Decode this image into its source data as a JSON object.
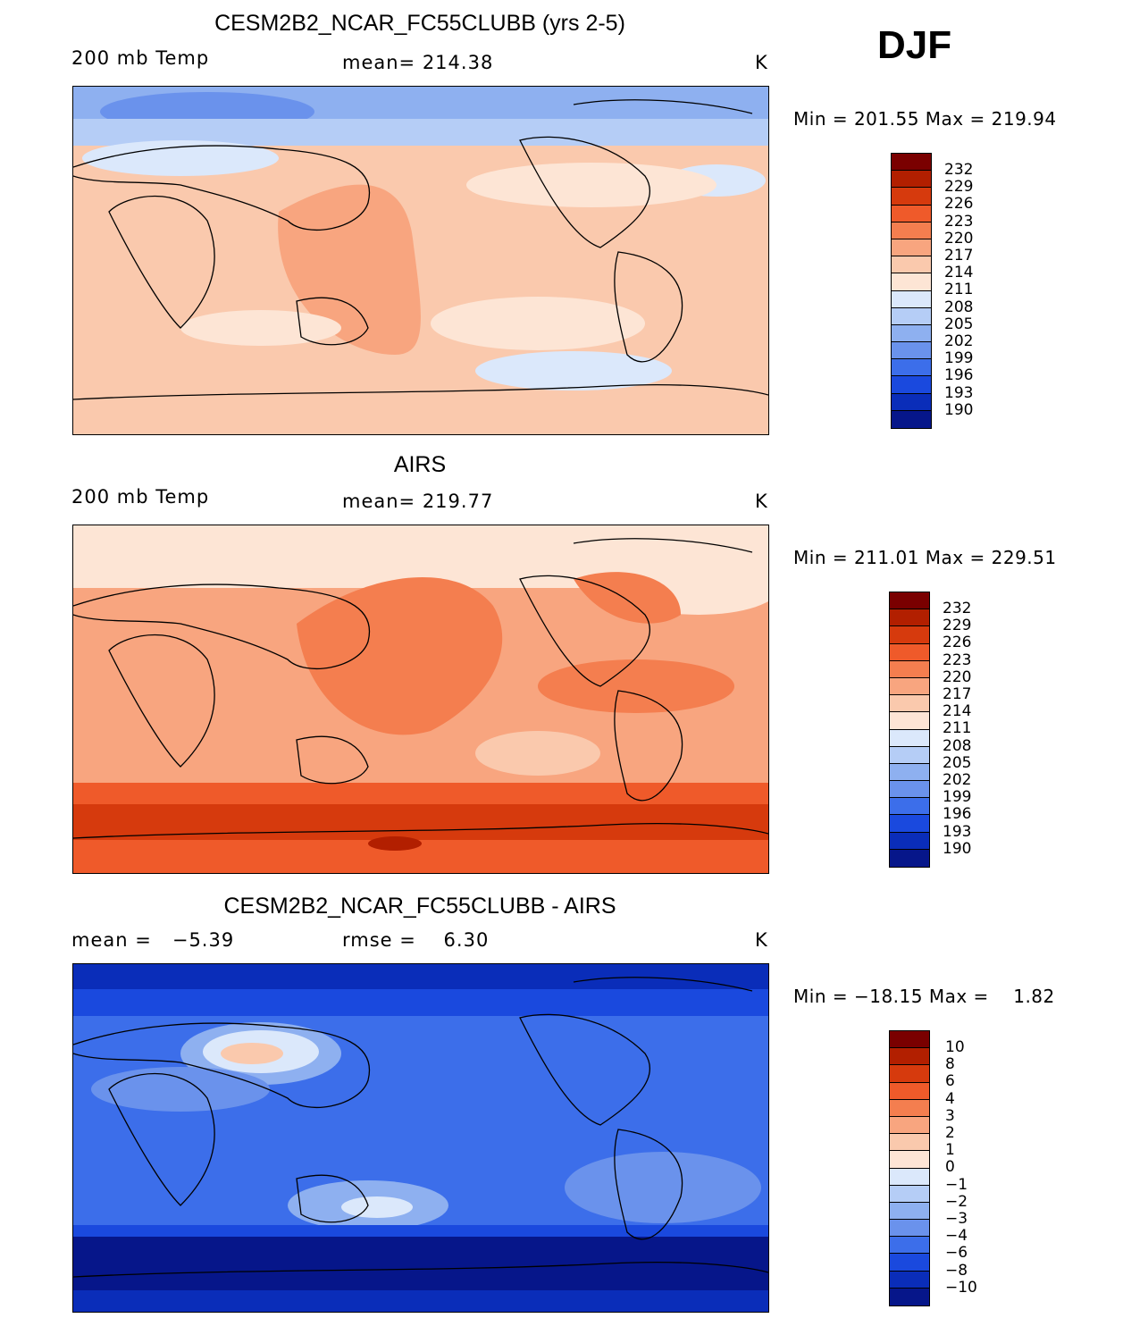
{
  "season": "DJF",
  "panels": [
    {
      "title": "CESM2B2_NCAR_FC55CLUBB (yrs 2-5)",
      "left_label": "200 mb Temp",
      "center_label": "mean= 214.38",
      "units": "K",
      "minmax": "Min = 201.55 Max = 219.94",
      "colorbar_ticks": [
        "232",
        "229",
        "226",
        "223",
        "220",
        "217",
        "214",
        "211",
        "208",
        "205",
        "202",
        "199",
        "196",
        "193",
        "190"
      ]
    },
    {
      "title": "AIRS",
      "left_label": "200 mb Temp",
      "center_label": "mean= 219.77",
      "units": "K",
      "minmax": "Min = 211.01 Max = 229.51",
      "colorbar_ticks": [
        "232",
        "229",
        "226",
        "223",
        "220",
        "217",
        "214",
        "211",
        "208",
        "205",
        "202",
        "199",
        "196",
        "193",
        "190"
      ]
    },
    {
      "title": "CESM2B2_NCAR_FC55CLUBB - AIRS",
      "left_label": "mean =   −5.39",
      "center_label": "rmse =    6.30",
      "units": "K",
      "minmax": "Min = −18.15 Max =    1.82",
      "colorbar_ticks": [
        "10",
        "8",
        "6",
        "4",
        "3",
        "2",
        "1",
        "0",
        "−1",
        "−2",
        "−3",
        "−4",
        "−6",
        "−8",
        "−10"
      ]
    }
  ],
  "colors": {
    "abs_scale": [
      "#7a0000",
      "#b21f00",
      "#d63a0d",
      "#ef5a2a",
      "#f47e4f",
      "#f8a57f",
      "#fac9ad",
      "#fde5d5",
      "#dbe8fb",
      "#b5cdf6",
      "#8eb0f0",
      "#6a92ec",
      "#3c6eea",
      "#1a49de",
      "#0a2db9",
      "#06168a"
    ],
    "diff_scale": [
      "#7a0000",
      "#b21f00",
      "#d63a0d",
      "#ef5a2a",
      "#f47e4f",
      "#f8a57f",
      "#fac9ad",
      "#fde5d5",
      "#dbe8fb",
      "#b5cdf6",
      "#8eb0f0",
      "#6a92ec",
      "#3c6eea",
      "#1a49de",
      "#0a2db9",
      "#06168a"
    ]
  }
}
